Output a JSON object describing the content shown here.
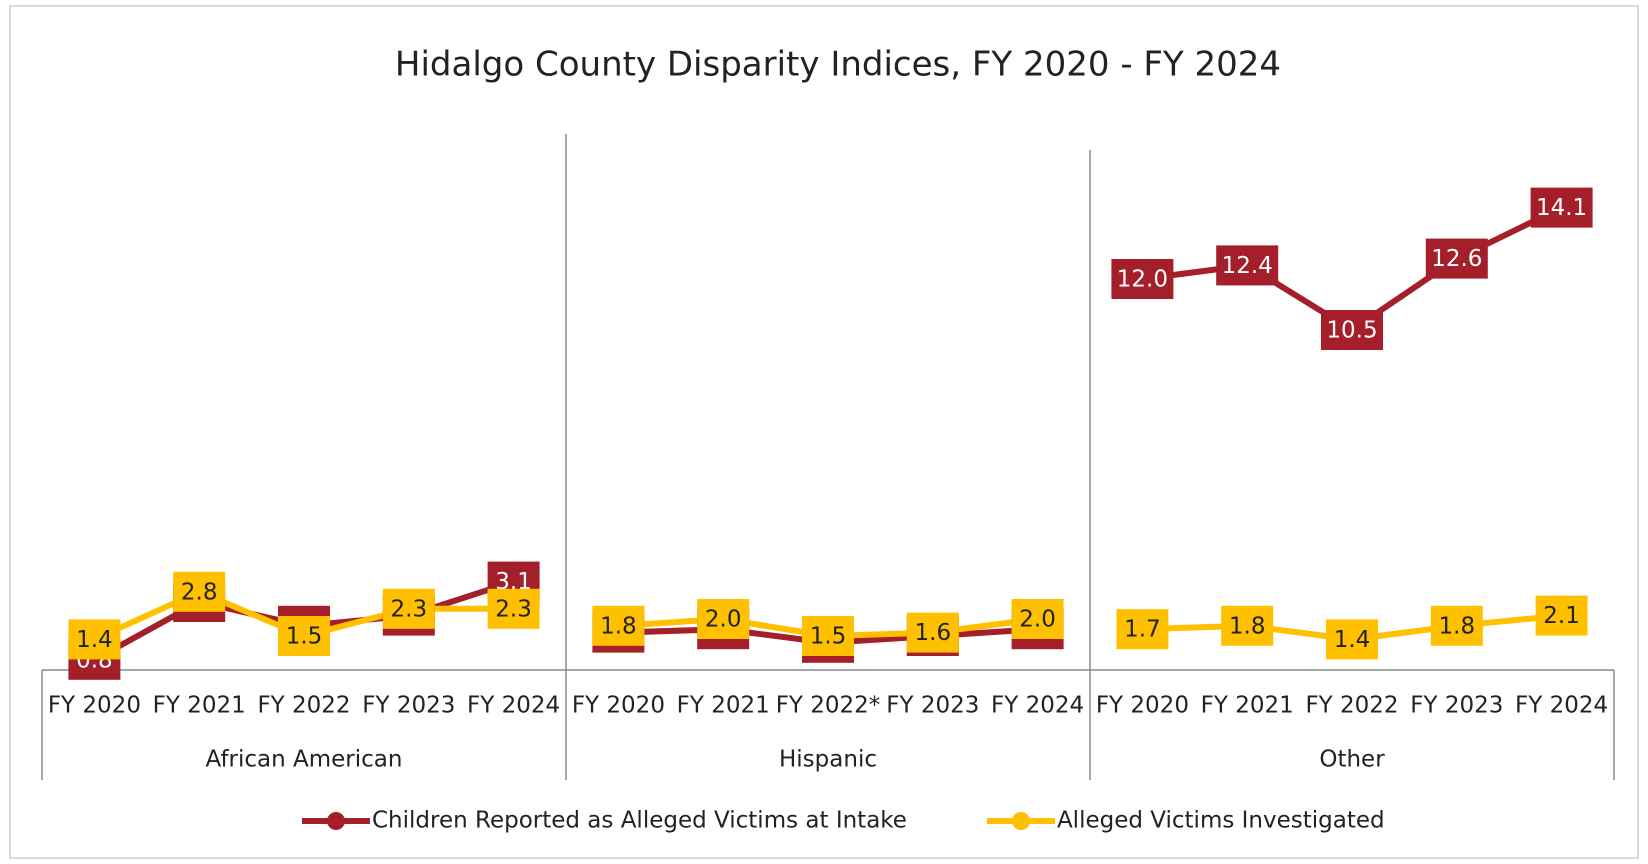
{
  "chart_data": {
    "type": "line",
    "title": "Hidalgo County Disparity Indices, FY 2020 - FY 2024",
    "groups": [
      {
        "name": "African American",
        "categories": [
          "FY 2020",
          "FY 2021",
          "FY 2022",
          "FY 2023",
          "FY 2024"
        ]
      },
      {
        "name": "Hispanic",
        "categories": [
          "FY 2020",
          "FY 2021",
          "FY 2022*",
          "FY 2023",
          "FY 2024"
        ]
      },
      {
        "name": "Other",
        "categories": [
          "FY 2020",
          "FY 2021",
          "FY 2022",
          "FY 2023",
          "FY 2024"
        ]
      }
    ],
    "series": [
      {
        "name": "Children Reported as Alleged Victims at Intake",
        "color": "#a51f2b",
        "values": [
          0.8,
          2.5,
          1.8,
          2.1,
          3.1,
          1.6,
          1.7,
          1.3,
          1.5,
          1.7,
          12.0,
          12.4,
          10.5,
          12.6,
          14.1
        ],
        "value_labels": [
          "0.8",
          "2.5",
          "1.8",
          "2.1",
          "3.1",
          "1.6",
          "1.7",
          "1.3",
          "1.5",
          "1.7",
          "12.0",
          "12.4",
          "10.5",
          "12.6",
          "14.1"
        ]
      },
      {
        "name": "Alleged Victims Investigated",
        "color": "#ffc000",
        "values": [
          1.4,
          2.8,
          1.5,
          2.3,
          2.3,
          1.8,
          2.0,
          1.5,
          1.6,
          2.0,
          1.7,
          1.8,
          1.4,
          1.8,
          2.1
        ],
        "value_labels": [
          "1.4",
          "2.8",
          "1.5",
          "2.3",
          "2.3",
          "1.8",
          "2.0",
          "1.5",
          "1.6",
          "2.0",
          "1.7",
          "1.8",
          "1.4",
          "1.8",
          "2.1"
        ]
      }
    ],
    "ylim": [
      0.5,
      16
    ],
    "legend": "bottom"
  }
}
